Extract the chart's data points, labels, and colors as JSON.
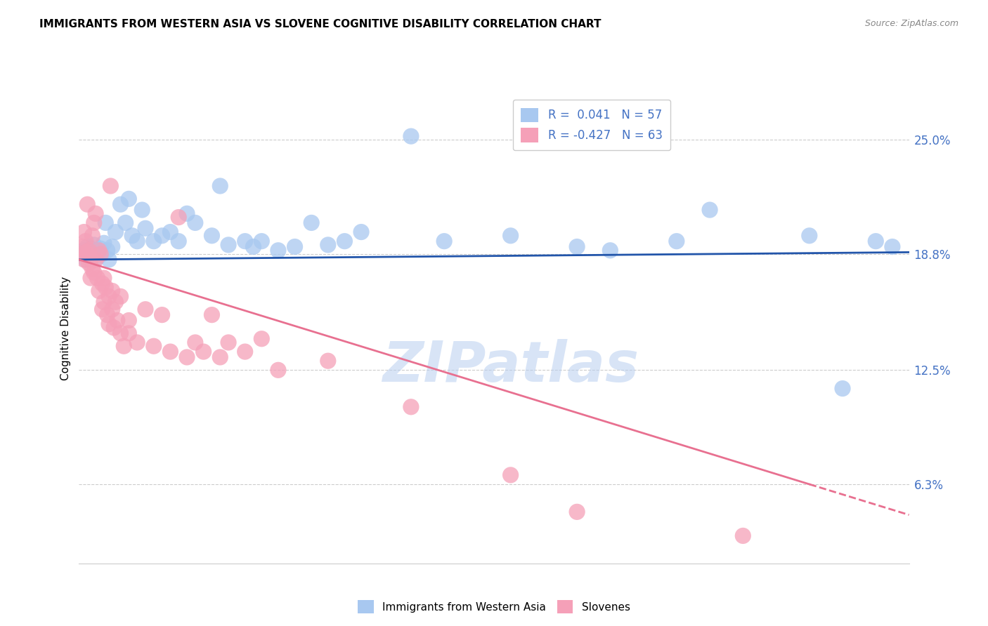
{
  "title": "IMMIGRANTS FROM WESTERN ASIA VS SLOVENE COGNITIVE DISABILITY CORRELATION CHART",
  "source": "Source: ZipAtlas.com",
  "ylabel": "Cognitive Disability",
  "ytick_labels": [
    "6.3%",
    "12.5%",
    "18.8%",
    "25.0%"
  ],
  "ytick_values": [
    6.3,
    12.5,
    18.8,
    25.0
  ],
  "xlim": [
    0.0,
    50.0
  ],
  "ylim": [
    2.0,
    27.5
  ],
  "watermark": "ZIPatlas",
  "blue_color": "#A8C8F0",
  "pink_color": "#F5A0B8",
  "blue_line_color": "#2255AA",
  "pink_line_color": "#E87090",
  "blue_dots": [
    [
      0.2,
      18.8
    ],
    [
      0.3,
      19.0
    ],
    [
      0.4,
      18.5
    ],
    [
      0.5,
      19.2
    ],
    [
      0.6,
      18.9
    ],
    [
      0.7,
      19.1
    ],
    [
      0.8,
      18.7
    ],
    [
      0.9,
      19.3
    ],
    [
      1.0,
      19.0
    ],
    [
      1.1,
      18.6
    ],
    [
      1.2,
      18.9
    ],
    [
      1.3,
      19.1
    ],
    [
      1.4,
      18.8
    ],
    [
      1.5,
      19.4
    ],
    [
      1.6,
      20.5
    ],
    [
      1.7,
      19.0
    ],
    [
      1.8,
      18.5
    ],
    [
      2.0,
      19.2
    ],
    [
      2.2,
      20.0
    ],
    [
      2.5,
      21.5
    ],
    [
      2.8,
      20.5
    ],
    [
      3.0,
      21.8
    ],
    [
      3.2,
      19.8
    ],
    [
      3.5,
      19.5
    ],
    [
      3.8,
      21.2
    ],
    [
      4.0,
      20.2
    ],
    [
      4.5,
      19.5
    ],
    [
      5.0,
      19.8
    ],
    [
      5.5,
      20.0
    ],
    [
      6.0,
      19.5
    ],
    [
      6.5,
      21.0
    ],
    [
      7.0,
      20.5
    ],
    [
      8.0,
      19.8
    ],
    [
      8.5,
      22.5
    ],
    [
      9.0,
      19.3
    ],
    [
      10.0,
      19.5
    ],
    [
      10.5,
      19.2
    ],
    [
      11.0,
      19.5
    ],
    [
      12.0,
      19.0
    ],
    [
      13.0,
      19.2
    ],
    [
      14.0,
      20.5
    ],
    [
      15.0,
      19.3
    ],
    [
      16.0,
      19.5
    ],
    [
      17.0,
      20.0
    ],
    [
      20.0,
      25.2
    ],
    [
      22.0,
      19.5
    ],
    [
      26.0,
      19.8
    ],
    [
      30.0,
      19.2
    ],
    [
      32.0,
      19.0
    ],
    [
      36.0,
      19.5
    ],
    [
      38.0,
      21.2
    ],
    [
      44.0,
      19.8
    ],
    [
      46.0,
      11.5
    ],
    [
      48.0,
      19.5
    ],
    [
      49.0,
      19.2
    ]
  ],
  "pink_dots": [
    [
      0.1,
      18.8
    ],
    [
      0.2,
      19.2
    ],
    [
      0.3,
      18.5
    ],
    [
      0.3,
      20.0
    ],
    [
      0.4,
      18.9
    ],
    [
      0.4,
      19.5
    ],
    [
      0.5,
      21.5
    ],
    [
      0.5,
      18.8
    ],
    [
      0.6,
      19.0
    ],
    [
      0.6,
      18.3
    ],
    [
      0.7,
      18.5
    ],
    [
      0.7,
      17.5
    ],
    [
      0.8,
      19.8
    ],
    [
      0.8,
      18.0
    ],
    [
      0.9,
      20.5
    ],
    [
      0.9,
      17.8
    ],
    [
      1.0,
      21.0
    ],
    [
      1.0,
      18.5
    ],
    [
      1.1,
      17.5
    ],
    [
      1.2,
      19.0
    ],
    [
      1.2,
      16.8
    ],
    [
      1.3,
      18.8
    ],
    [
      1.4,
      15.8
    ],
    [
      1.4,
      17.2
    ],
    [
      1.5,
      17.5
    ],
    [
      1.5,
      16.2
    ],
    [
      1.6,
      17.0
    ],
    [
      1.7,
      15.5
    ],
    [
      1.8,
      16.5
    ],
    [
      1.8,
      15.0
    ],
    [
      1.9,
      22.5
    ],
    [
      2.0,
      15.8
    ],
    [
      2.0,
      16.8
    ],
    [
      2.1,
      14.8
    ],
    [
      2.2,
      16.2
    ],
    [
      2.3,
      15.2
    ],
    [
      2.5,
      14.5
    ],
    [
      2.5,
      16.5
    ],
    [
      2.7,
      13.8
    ],
    [
      3.0,
      15.2
    ],
    [
      3.0,
      14.5
    ],
    [
      3.5,
      14.0
    ],
    [
      4.0,
      15.8
    ],
    [
      4.5,
      13.8
    ],
    [
      5.0,
      15.5
    ],
    [
      5.5,
      13.5
    ],
    [
      6.0,
      20.8
    ],
    [
      6.5,
      13.2
    ],
    [
      7.0,
      14.0
    ],
    [
      7.5,
      13.5
    ],
    [
      8.0,
      15.5
    ],
    [
      8.5,
      13.2
    ],
    [
      9.0,
      14.0
    ],
    [
      10.0,
      13.5
    ],
    [
      11.0,
      14.2
    ],
    [
      12.0,
      12.5
    ],
    [
      15.0,
      13.0
    ],
    [
      20.0,
      10.5
    ],
    [
      26.0,
      6.8
    ],
    [
      30.0,
      4.8
    ],
    [
      40.0,
      3.5
    ]
  ]
}
